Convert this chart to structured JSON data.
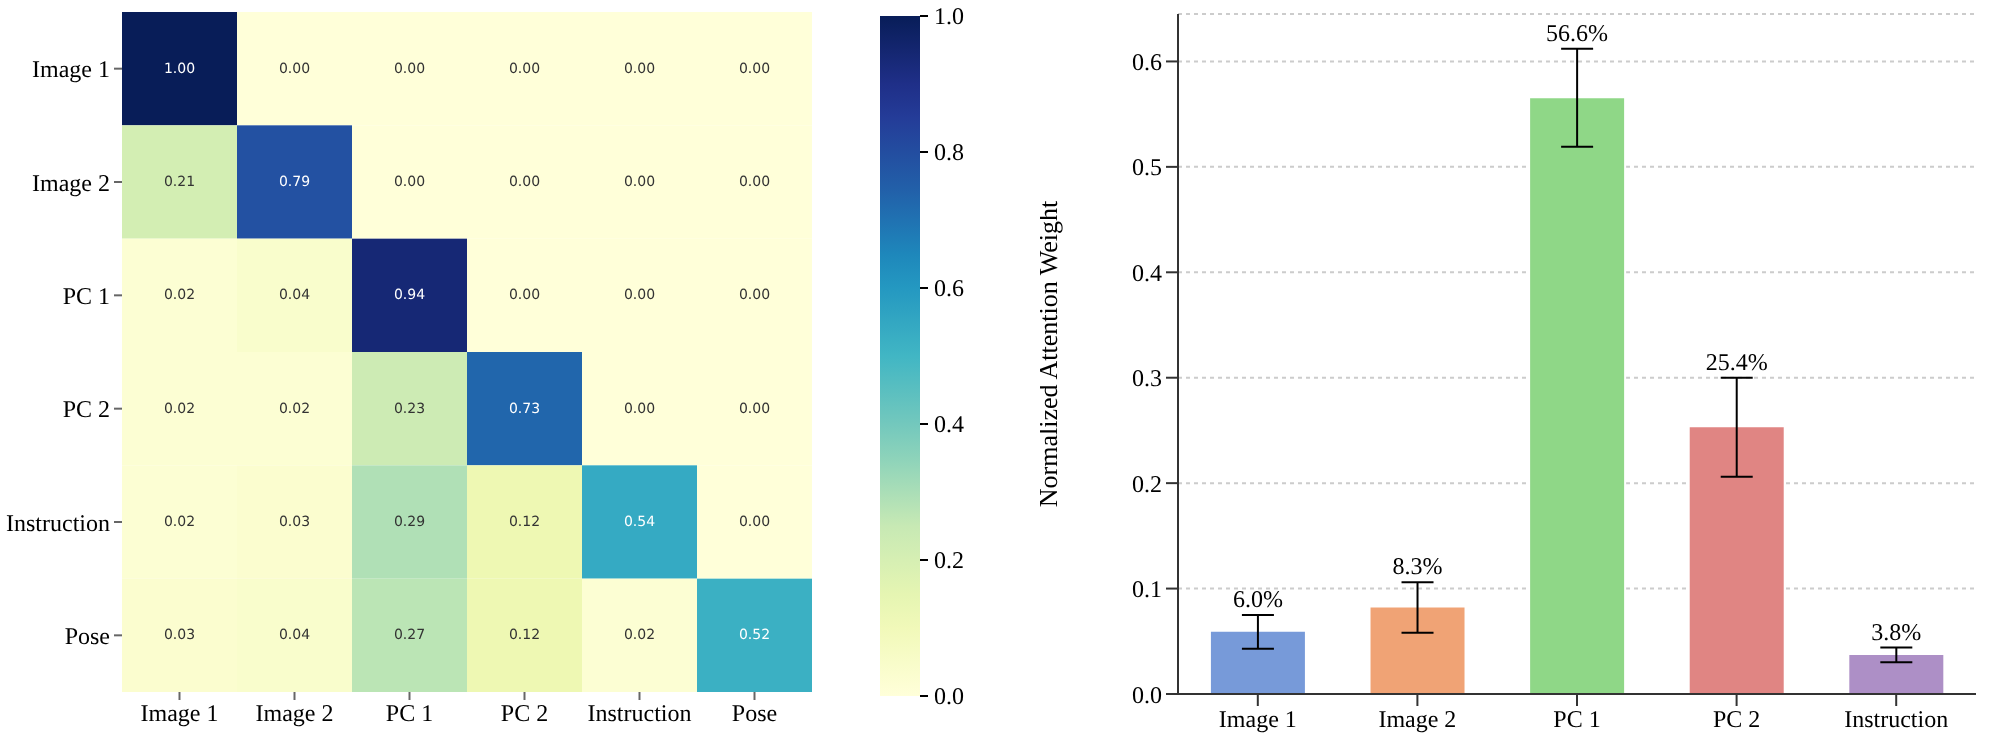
{
  "chart_data": [
    {
      "type": "heatmap",
      "categories": [
        "Image 1",
        "Image 2",
        "PC 1",
        "PC 2",
        "Instruction",
        "Pose"
      ],
      "y_categories": [
        "Image 1",
        "Image 2",
        "PC 1",
        "PC 2",
        "Instruction",
        "Pose"
      ],
      "cells": [
        [
          1.0,
          0.0,
          0.0,
          0.0,
          0.0,
          0.0
        ],
        [
          0.21,
          0.79,
          0.0,
          0.0,
          0.0,
          0.0
        ],
        [
          0.02,
          0.04,
          0.94,
          0.0,
          0.0,
          0.0
        ],
        [
          0.02,
          0.02,
          0.23,
          0.73,
          0.0,
          0.0
        ],
        [
          0.02,
          0.03,
          0.29,
          0.12,
          0.54,
          0.0
        ],
        [
          0.03,
          0.04,
          0.27,
          0.12,
          0.02,
          0.52
        ]
      ],
      "cell_labels": [
        [
          "1.00",
          "0.00",
          "0.00",
          "0.00",
          "0.00",
          "0.00"
        ],
        [
          "0.21",
          "0.79",
          "0.00",
          "0.00",
          "0.00",
          "0.00"
        ],
        [
          "0.02",
          "0.04",
          "0.94",
          "0.00",
          "0.00",
          "0.00"
        ],
        [
          "0.02",
          "0.02",
          "0.23",
          "0.73",
          "0.00",
          "0.00"
        ],
        [
          "0.02",
          "0.03",
          "0.29",
          "0.12",
          "0.54",
          "0.00"
        ],
        [
          "0.03",
          "0.04",
          "0.27",
          "0.12",
          "0.02",
          "0.52"
        ]
      ],
      "clim": [
        0,
        1
      ],
      "cticks": [
        {
          "value": 0,
          "label": "0.0"
        },
        {
          "value": 0.2,
          "label": "0.2"
        },
        {
          "value": 0.4,
          "label": "0.4"
        },
        {
          "value": 0.6,
          "label": "0.6"
        },
        {
          "value": 0.8,
          "label": "0.8"
        },
        {
          "value": 1,
          "label": "1.0"
        }
      ]
    },
    {
      "type": "bar",
      "ylabel": "Normalized Attention Weight",
      "categories": [
        "Image 1",
        "Image 2",
        "PC 1",
        "PC 2",
        "Instruction"
      ],
      "values": [
        0.06,
        0.083,
        0.566,
        0.254,
        0.038
      ],
      "colors": [
        "#779ad9",
        "#f0a375",
        "#8fd787",
        "#e08583",
        "#ad8fc6"
      ],
      "errors": [
        [
          0.043,
          0.075
        ],
        [
          0.058,
          0.106
        ],
        [
          0.519,
          0.612
        ],
        [
          0.206,
          0.3
        ],
        [
          0.03,
          0.044
        ]
      ],
      "value_labels": [
        "6.0%",
        "8.3%",
        "56.6%",
        "25.4%",
        "3.8%"
      ],
      "ylim": [
        0,
        0.645
      ],
      "yticks": [
        {
          "value": 0,
          "label": "0.0"
        },
        {
          "value": 0.1,
          "label": "0.1"
        },
        {
          "value": 0.2,
          "label": "0.2"
        },
        {
          "value": 0.3,
          "label": "0.3"
        },
        {
          "value": 0.4,
          "label": "0.4"
        },
        {
          "value": 0.5,
          "label": "0.5"
        },
        {
          "value": 0.6,
          "label": "0.6"
        }
      ],
      "grid": "y"
    }
  ]
}
